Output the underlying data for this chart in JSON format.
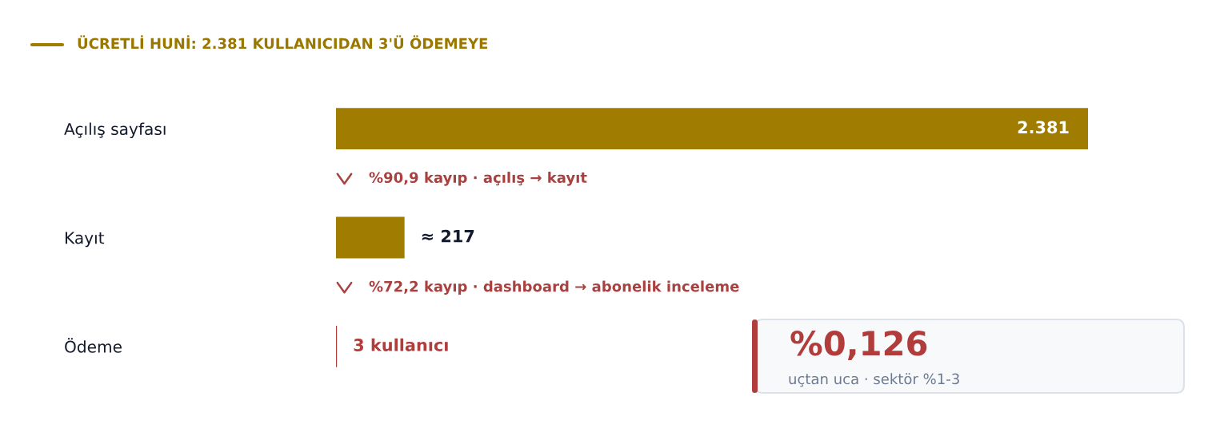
{
  "chart_data": {
    "type": "bar",
    "orientation": "horizontal",
    "title": "ÜCRETLİ HUNİ: 2.381 KULLANICIDAN 3'Ü ÖDEMEYE",
    "categories": [
      "Açılış sayfası",
      "Kayıt",
      "Ödeme"
    ],
    "values": [
      2381,
      217,
      3
    ],
    "colors": [
      "#a07c00",
      "#a07c00",
      "#b03c3c"
    ],
    "value_labels": [
      "2.381",
      "≈ 217",
      "3 kullanıcı"
    ],
    "annotations": [
      "%90,9 kayıp · açılış → kayıt",
      "%72,2 kayıp · dashboard → abonelik inceleme",
      "%0,126",
      "uçtan uca · sektör %1-3"
    ],
    "tick_labels": "y"
  }
}
